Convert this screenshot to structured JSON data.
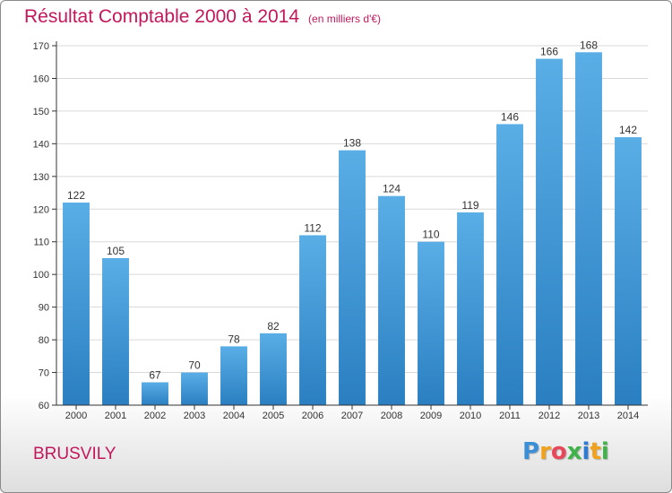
{
  "header": {
    "title": "Résultat Comptable 2000 à 2014",
    "subtitle": "(en milliers d'€)"
  },
  "footer": {
    "commune": "BRUSVILY",
    "logo_letters": [
      "P",
      "r",
      "o",
      "x",
      "i",
      "t",
      "i"
    ],
    "logo_colors": [
      "#3b8fd6",
      "#f2a21a",
      "#e8465a",
      "#3fb24a",
      "#2e7bd1",
      "#f2a21a",
      "#3fb24a"
    ]
  },
  "colors": {
    "bar_top": "#5aaee6",
    "bar_bottom": "#2a7fc1",
    "title": "#c2185b",
    "axis": "#333333",
    "grid": "#d9d9d9"
  },
  "chart_data": {
    "type": "bar",
    "title": "Résultat Comptable 2000 à 2014",
    "subtitle": "(en milliers d'€)",
    "categories": [
      "2000",
      "2001",
      "2002",
      "2003",
      "2004",
      "2005",
      "2006",
      "2007",
      "2008",
      "2009",
      "2010",
      "2011",
      "2012",
      "2013",
      "2014"
    ],
    "values": [
      122,
      105,
      67,
      70,
      78,
      82,
      112,
      138,
      124,
      110,
      119,
      146,
      166,
      168,
      142
    ],
    "ylim": [
      60,
      170
    ],
    "yticks": [
      60,
      70,
      80,
      90,
      100,
      110,
      120,
      130,
      140,
      150,
      160,
      170
    ],
    "grid": true,
    "data_labels": true
  }
}
